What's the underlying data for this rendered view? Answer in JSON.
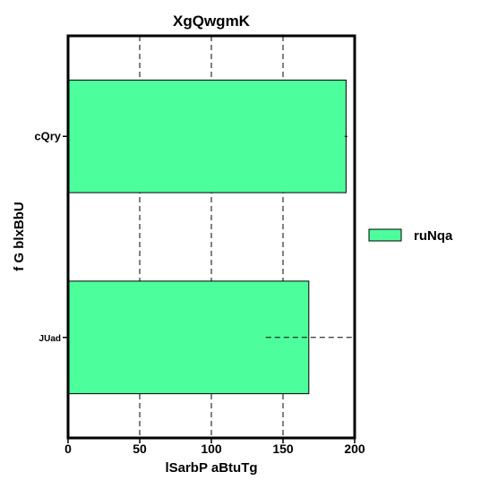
{
  "chart_data": {
    "type": "bar",
    "orientation": "horizontal",
    "title": "XgQwgmK",
    "xlabel": "lSarbP aBtuTg",
    "ylabel": "f  G blxBbU",
    "categories": [
      "cQry",
      "JUad"
    ],
    "series": [
      {
        "name": "ruNqa",
        "values": [
          194,
          168
        ],
        "color": "#4dff9c"
      }
    ],
    "error_bars": [
      1,
      30
    ],
    "xlim": [
      0,
      200
    ],
    "xticks": [
      0,
      50,
      100,
      150,
      200
    ],
    "grid": true,
    "grid_style": "dashed",
    "legend_position": "right"
  }
}
